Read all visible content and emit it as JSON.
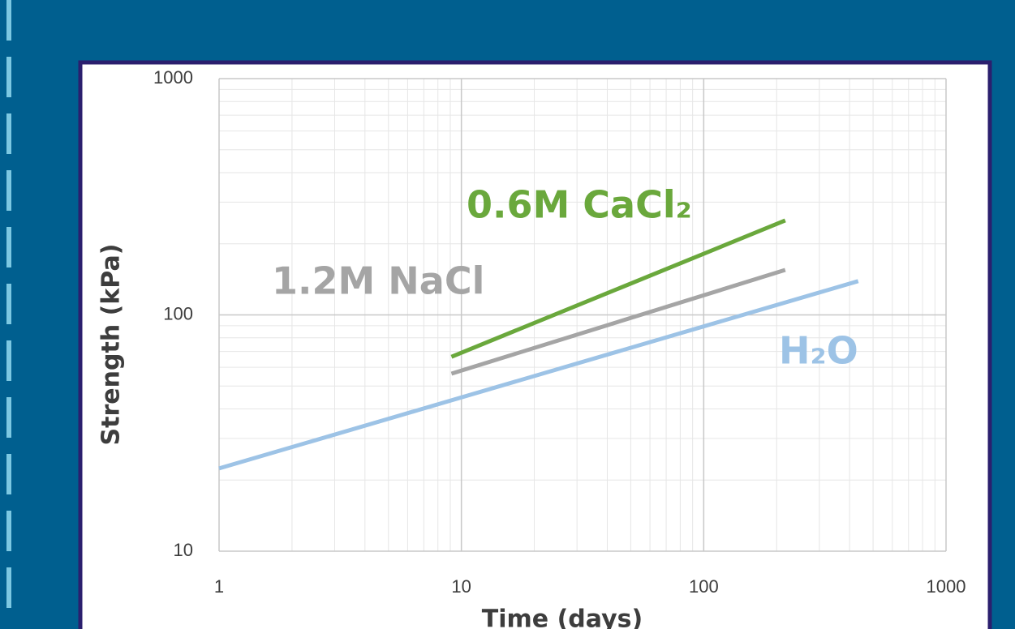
{
  "chart_data": {
    "type": "line",
    "xlabel": "Time (days)",
    "ylabel": "Strength (kPa)",
    "xlog": true,
    "ylog": true,
    "grid": true,
    "xlim": [
      1,
      1000
    ],
    "ylim": [
      10,
      1000
    ],
    "xticks": [
      1,
      10,
      100,
      1000
    ],
    "yticks": [
      10,
      100,
      1000
    ],
    "series": [
      {
        "name": "0.6M CaCl₂",
        "color": "#6aa83c",
        "x": [
          9.1,
          217
        ],
        "values": [
          66.5,
          251
        ]
      },
      {
        "name": "1.2M NaCl",
        "color": "#a5a5a5",
        "x": [
          9.1,
          217
        ],
        "values": [
          56.4,
          155
        ]
      },
      {
        "name": "H₂O",
        "color": "#9dc3e6",
        "x": [
          1,
          434
        ],
        "values": [
          22.4,
          139
        ]
      }
    ]
  }
}
